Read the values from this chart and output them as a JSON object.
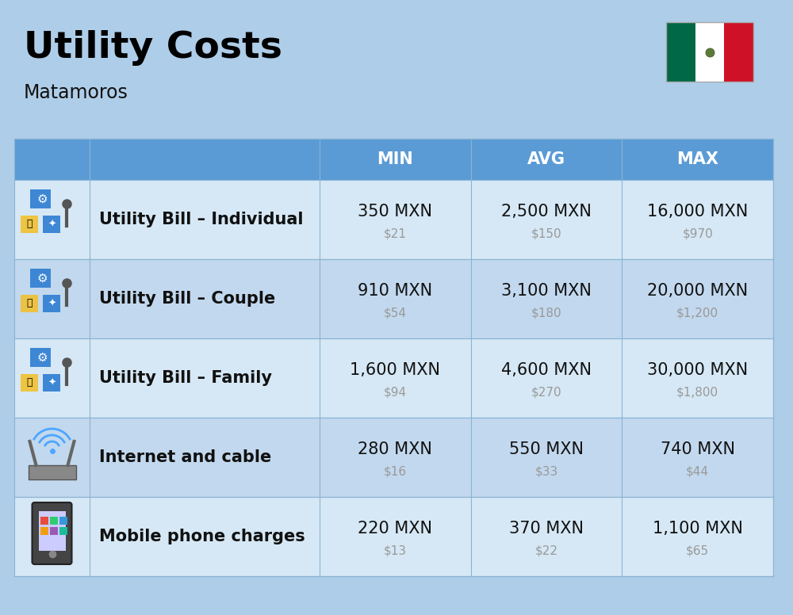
{
  "title": "Utility Costs",
  "subtitle": "Matamoros",
  "background_color": "#aecde8",
  "header_bg_color": "#5b9bd5",
  "header_text_color": "#ffffff",
  "row_bg_color_light": "#d6e8f5",
  "row_bg_color_dark": "#c2d8ee",
  "cell_border_color": "#8ab4d4",
  "title_color": "#000000",
  "subtitle_color": "#111111",
  "columns": [
    "MIN",
    "AVG",
    "MAX"
  ],
  "rows": [
    {
      "label": "Utility Bill – Individual",
      "min_mxn": "350 MXN",
      "min_usd": "$21",
      "avg_mxn": "2,500 MXN",
      "avg_usd": "$150",
      "max_mxn": "16,000 MXN",
      "max_usd": "$970"
    },
    {
      "label": "Utility Bill – Couple",
      "min_mxn": "910 MXN",
      "min_usd": "$54",
      "avg_mxn": "3,100 MXN",
      "avg_usd": "$180",
      "max_mxn": "20,000 MXN",
      "max_usd": "$1,200"
    },
    {
      "label": "Utility Bill – Family",
      "min_mxn": "1,600 MXN",
      "min_usd": "$94",
      "avg_mxn": "4,600 MXN",
      "avg_usd": "$270",
      "max_mxn": "30,000 MXN",
      "max_usd": "$1,800"
    },
    {
      "label": "Internet and cable",
      "min_mxn": "280 MXN",
      "min_usd": "$16",
      "avg_mxn": "550 MXN",
      "avg_usd": "$33",
      "max_mxn": "740 MXN",
      "max_usd": "$44"
    },
    {
      "label": "Mobile phone charges",
      "min_mxn": "220 MXN",
      "min_usd": "$13",
      "avg_mxn": "370 MXN",
      "avg_usd": "$22",
      "max_mxn": "1,100 MXN",
      "max_usd": "$65"
    }
  ],
  "flag_colors": [
    "#006847",
    "#ffffff",
    "#ce1126"
  ],
  "mxn_fontsize": 15,
  "usd_fontsize": 11,
  "label_fontsize": 15,
  "header_fontsize": 15,
  "title_fontsize": 34,
  "subtitle_fontsize": 17,
  "usd_color": "#999999"
}
